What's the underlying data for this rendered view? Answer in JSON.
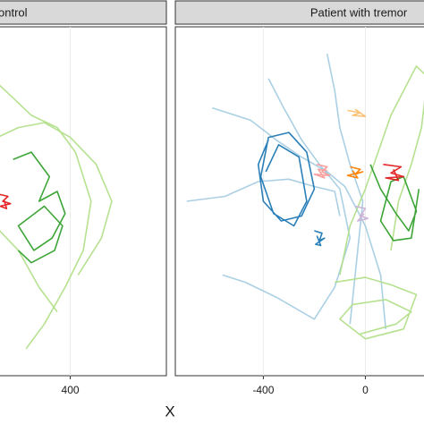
{
  "chart_data": [
    {
      "type": "line",
      "title": "ontrol",
      "xlabel": "X",
      "xlim": [
        95,
        770
      ],
      "ylim": [
        -710,
        710
      ],
      "xticks": [
        400
      ],
      "grid": true,
      "series": [
        {
          "color": "#b2df8a",
          "x": [
            100,
            180,
            250,
            350,
            420,
            480,
            450,
            380,
            300,
            230
          ],
          "values": [
            500,
            420,
            350,
            300,
            200,
            0,
            -200,
            -350,
            -500,
            -600
          ]
        },
        {
          "color": "#b2df8a",
          "x": [
            100,
            200,
            300,
            400,
            500,
            560,
            520,
            430
          ],
          "values": [
            250,
            300,
            320,
            260,
            150,
            0,
            -150,
            -300
          ]
        },
        {
          "color": "#b2df8a",
          "x": [
            110,
            200,
            280,
            350
          ],
          "values": [
            -100,
            -200,
            -350,
            -450
          ]
        },
        {
          "color": "#33a02c",
          "x": [
            180,
            250,
            320,
            280,
            350,
            380,
            330,
            260,
            200,
            300,
            370,
            340,
            250,
            200
          ],
          "values": [
            170,
            200,
            100,
            0,
            40,
            -50,
            -150,
            -200,
            -100,
            -20,
            -100,
            -200,
            -250,
            -200
          ]
        },
        {
          "color": "#e31a1c",
          "x": [
            120,
            160,
            140,
            170,
            130,
            155,
            145
          ],
          "values": [
            30,
            20,
            0,
            -10,
            -20,
            -30,
            5
          ]
        }
      ]
    },
    {
      "type": "line",
      "title": "Patient with tremor",
      "xlim": [
        -745,
        265
      ],
      "ylim": [
        -710,
        710
      ],
      "xticks": [
        -400,
        0
      ],
      "grid": true,
      "series": [
        {
          "color": "#a6cee3",
          "x": [
            -380,
            -320,
            -250,
            -180,
            -100,
            -60,
            -120,
            -200,
            -350,
            -470,
            -560
          ],
          "values": [
            500,
            380,
            250,
            150,
            50,
            -150,
            -350,
            -480,
            -390,
            -330,
            -300
          ]
        },
        {
          "color": "#a6cee3",
          "x": [
            -600,
            -450,
            -350,
            -250,
            -150,
            -80,
            0,
            60,
            80
          ],
          "values": [
            380,
            330,
            250,
            180,
            120,
            60,
            -100,
            -300,
            -520
          ]
        },
        {
          "color": "#a6cee3",
          "x": [
            -700,
            -550,
            -420,
            -300,
            -200,
            -120,
            -100
          ],
          "values": [
            0,
            20,
            80,
            90,
            60,
            40,
            -60
          ]
        },
        {
          "color": "#a6cee3",
          "x": [
            -150,
            -120,
            -100,
            -60,
            -10,
            -30,
            -60
          ],
          "values": [
            600,
            450,
            300,
            150,
            0,
            -200,
            -500
          ]
        },
        {
          "color": "#b2df8a",
          "x": [
            -120,
            0,
            100,
            200,
            150,
            0,
            -100,
            -50,
            80,
            180,
            120,
            -20
          ],
          "values": [
            -330,
            -310,
            -340,
            -380,
            -520,
            -560,
            -480,
            -420,
            -400,
            -450,
            -500,
            -540
          ]
        },
        {
          "color": "#b2df8a",
          "x": [
            -100,
            -60,
            0,
            50,
            100,
            150,
            200,
            250
          ],
          "values": [
            -300,
            -100,
            50,
            200,
            350,
            450,
            550,
            500
          ]
        },
        {
          "color": "#b2df8a",
          "x": [
            100,
            130,
            180,
            220,
            250
          ],
          "values": [
            -200,
            0,
            150,
            300,
            560
          ]
        },
        {
          "color": "#1f78b4",
          "x": [
            -380,
            -420,
            -400,
            -330,
            -250,
            -200,
            -230,
            -300,
            -380,
            -410,
            -360,
            -280,
            -230,
            -260,
            -340,
            -390
          ],
          "values": [
            250,
            150,
            0,
            -80,
            -60,
            50,
            200,
            280,
            260,
            100,
            -50,
            -100,
            0,
            180,
            230,
            120
          ]
        },
        {
          "color": "#1f78b4",
          "x": [
            -200,
            -170,
            -180,
            -160,
            -195,
            -175,
            -190
          ],
          "values": [
            -120,
            -130,
            -160,
            -150,
            -175,
            -180,
            -140
          ]
        },
        {
          "color": "#33a02c",
          "x": [
            20,
            60,
            120,
            170,
            200,
            150,
            100,
            60,
            110,
            180,
            210
          ],
          "values": [
            150,
            50,
            -50,
            -120,
            -40,
            100,
            80,
            -80,
            -160,
            -150,
            50
          ]
        },
        {
          "color": "#fb9a99",
          "x": [
            -190,
            -150,
            -170,
            -140,
            -200,
            -160,
            -185,
            -150
          ],
          "values": [
            150,
            140,
            120,
            105,
            110,
            95,
            130,
            125
          ]
        },
        {
          "color": "#ff7f00",
          "x": [
            -60,
            -20,
            -40,
            -10,
            -70,
            -30,
            -50
          ],
          "values": [
            140,
            130,
            110,
            120,
            105,
            95,
            125
          ]
        },
        {
          "color": "#e31a1c",
          "x": [
            70,
            140,
            100,
            150,
            80,
            130,
            110
          ],
          "values": [
            150,
            140,
            115,
            100,
            95,
            85,
            130
          ]
        },
        {
          "color": "#fdbf6f",
          "x": [
            -70,
            -20,
            -50,
            0,
            -40
          ],
          "values": [
            370,
            360,
            350,
            345,
            375
          ]
        },
        {
          "color": "#cab2d6",
          "x": [
            -40,
            0,
            -20,
            10,
            -30,
            -5
          ],
          "values": [
            -20,
            -30,
            -60,
            -70,
            -80,
            -50
          ]
        }
      ]
    }
  ]
}
